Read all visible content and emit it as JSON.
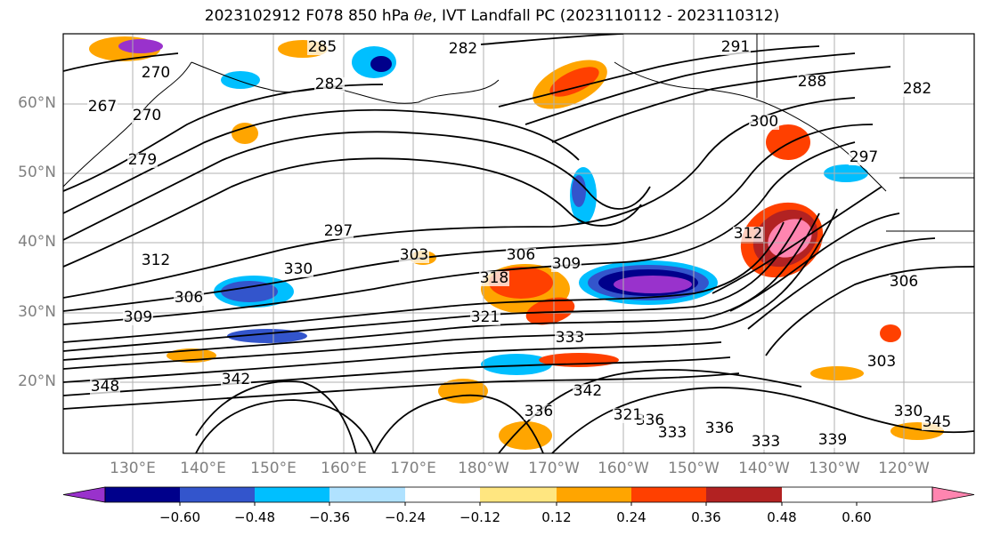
{
  "title": {
    "prefix": "2023102912 F078 850 hPa",
    "symbol": "θe",
    "suffix": ", IVT Landfall PC (2023110112 - 2023110312)"
  },
  "lat_labels": [
    "60°N",
    "50°N",
    "40°N",
    "30°N",
    "20°N"
  ],
  "lon_labels": [
    "130°E",
    "140°E",
    "150°E",
    "160°E",
    "170°E",
    "180°W",
    "170°W",
    "160°W",
    "150°W",
    "140°W",
    "130°W",
    "120°W"
  ],
  "colorbar": {
    "colors": [
      "#9932CC",
      "#00008B",
      "#3355CC",
      "#00BFFF",
      "#B0E2FF",
      "#FFFFFF",
      "#FFE680",
      "#FFA500",
      "#FF4000",
      "#B22222",
      "#FF85B0"
    ],
    "tick_labels": [
      "−0.60",
      "−0.48",
      "−0.36",
      "−0.24",
      "−0.12",
      "0.12",
      "0.24",
      "0.36",
      "0.48",
      "0.60"
    ]
  },
  "contour_labels": [
    "285",
    "282",
    "291",
    "282",
    "288",
    "270",
    "267",
    "270",
    "282",
    "300",
    "297",
    "279",
    "297",
    "303",
    "306",
    "309",
    "312",
    "318",
    "312",
    "321",
    "309",
    "306",
    "306",
    "303",
    "330",
    "333",
    "342",
    "348",
    "336",
    "342",
    "333",
    "336",
    "321",
    "336",
    "333",
    "339",
    "330",
    "345"
  ]
}
